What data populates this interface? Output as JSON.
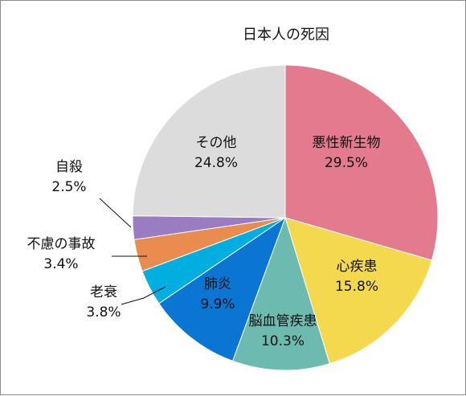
{
  "chart_data": {
    "type": "pie",
    "title": "日本人の死因",
    "start_angle_deg": 0,
    "direction": "clockwise",
    "slices": [
      {
        "name": "悪性新生物",
        "value": 29.5,
        "label": "29.5%",
        "color": "#e37a8e"
      },
      {
        "name": "心疾患",
        "value": 15.8,
        "label": "15.8%",
        "color": "#f4d94f"
      },
      {
        "name": "脳血管疾患",
        "value": 10.3,
        "label": "10.3%",
        "color": "#6cbab0"
      },
      {
        "name": "肺炎",
        "value": 9.9,
        "label": "9.9%",
        "color": "#0a75d2"
      },
      {
        "name": "老衰",
        "value": 3.8,
        "label": "3.8%",
        "color": "#00aee0"
      },
      {
        "name": "不慮の事故",
        "value": 3.4,
        "label": "3.4%",
        "color": "#ea8c4f"
      },
      {
        "name": "自殺",
        "value": 2.5,
        "label": "2.5%",
        "color": "#9a7cc2"
      },
      {
        "name": "その他",
        "value": 24.8,
        "label": "24.8%",
        "color": "#dcdcdc"
      }
    ]
  }
}
